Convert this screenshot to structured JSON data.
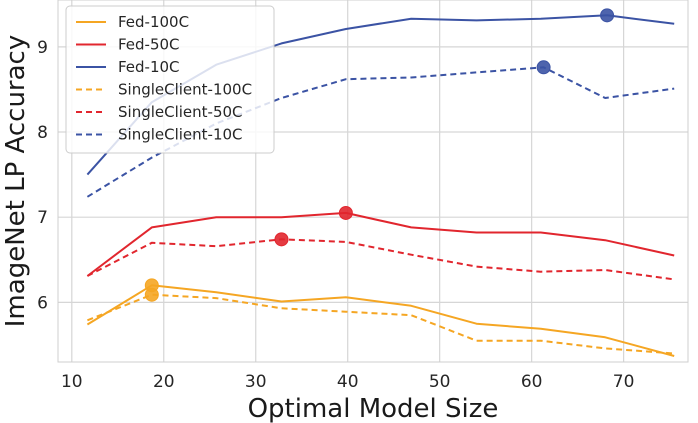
{
  "chart_data": {
    "type": "line",
    "xlabel": "Optimal Model Size",
    "ylabel": "ImageNet LP Accuracy",
    "xlim": [
      8.5,
      77
    ],
    "ylim": [
      5.3,
      9.55
    ],
    "xticks": [
      10,
      20,
      30,
      40,
      50,
      60,
      70
    ],
    "yticks": [
      6,
      7,
      8,
      9
    ],
    "grid": true,
    "legend_position": "top-left",
    "series": [
      {
        "name": "Fed-100C",
        "color": "#f5a623",
        "dashed": false,
        "x": [
          11.7,
          18.7,
          25.7,
          32.8,
          39.8,
          46.9,
          54.0,
          61.0,
          68.0,
          75.5
        ],
        "y": [
          5.74,
          6.2,
          6.12,
          6.01,
          6.06,
          5.96,
          5.75,
          5.69,
          5.59,
          5.37
        ],
        "highlight": {
          "x": 18.7,
          "y": 6.2
        }
      },
      {
        "name": "Fed-50C",
        "color": "#e1262e",
        "dashed": false,
        "x": [
          11.7,
          18.7,
          25.7,
          32.8,
          39.8,
          46.9,
          54.0,
          61.0,
          68.0,
          75.5
        ],
        "y": [
          6.31,
          6.88,
          7.0,
          7.0,
          7.05,
          6.88,
          6.82,
          6.82,
          6.73,
          6.55
        ],
        "highlight": {
          "x": 39.8,
          "y": 7.05
        }
      },
      {
        "name": "Fed-10C",
        "color": "#3b53a4",
        "dashed": false,
        "x": [
          11.7,
          18.7,
          25.7,
          32.8,
          39.8,
          46.9,
          54.0,
          61.0,
          68.2,
          75.5
        ],
        "y": [
          7.5,
          8.35,
          8.79,
          9.04,
          9.21,
          9.33,
          9.31,
          9.33,
          9.37,
          9.27
        ],
        "highlight": {
          "x": 68.2,
          "y": 9.37
        }
      },
      {
        "name": "SingleClient-100C",
        "color": "#f5a623",
        "dashed": true,
        "x": [
          11.7,
          18.7,
          25.7,
          32.8,
          39.8,
          46.9,
          54.0,
          61.0,
          68.0,
          75.5
        ],
        "y": [
          5.79,
          6.09,
          6.05,
          5.93,
          5.89,
          5.85,
          5.55,
          5.55,
          5.46,
          5.4
        ],
        "highlight": {
          "x": 18.7,
          "y": 6.09
        }
      },
      {
        "name": "SingleClient-50C",
        "color": "#e1262e",
        "dashed": true,
        "x": [
          11.7,
          18.7,
          25.7,
          32.8,
          39.8,
          46.9,
          54.0,
          61.0,
          68.0,
          75.5
        ],
        "y": [
          6.31,
          6.7,
          6.66,
          6.74,
          6.71,
          6.56,
          6.42,
          6.36,
          6.38,
          6.27
        ],
        "highlight": {
          "x": 32.8,
          "y": 6.74
        }
      },
      {
        "name": "SingleClient-10C",
        "color": "#3b53a4",
        "dashed": true,
        "x": [
          11.7,
          18.7,
          25.7,
          32.8,
          39.8,
          46.9,
          54.0,
          61.3,
          68.0,
          75.5
        ],
        "y": [
          7.24,
          7.7,
          8.1,
          8.4,
          8.62,
          8.64,
          8.7,
          8.76,
          8.4,
          8.51
        ],
        "highlight": {
          "x": 61.3,
          "y": 8.76
        }
      }
    ]
  }
}
